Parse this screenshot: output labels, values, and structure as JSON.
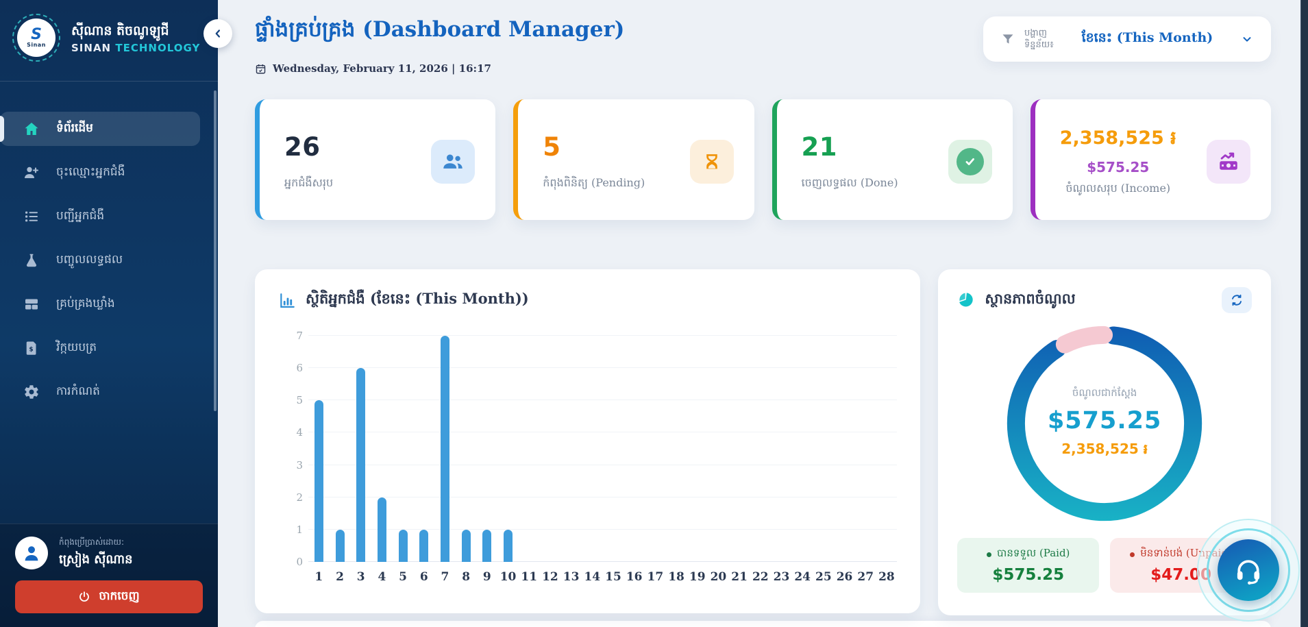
{
  "app": {
    "brand": {
      "name_khmer": "ស៊ីណាន តិចណូឡូជី",
      "name_en_1": "SINAN",
      "name_en_2": "TECHNOLOGY",
      "logo_letter": "S",
      "logo_word": "Sinan"
    },
    "colors": {
      "sidebar_top": "#0d2f58",
      "accent_blue": "#2f9ce0",
      "accent_orange": "#f59e0b",
      "accent_green": "#1fa45c",
      "accent_purple": "#9d2fc0",
      "bar_blue": "#3e9cdb",
      "donut_blue_start": "#0f5ab2",
      "donut_blue_end": "#19b4c6",
      "donut_pink": "#f5c9d2",
      "logout_red": "#cf3e2d",
      "title_blue": "#1463be"
    }
  },
  "sidebar": {
    "items": [
      {
        "label": "ទំព័រដើម",
        "icon": "home-icon",
        "active": true
      },
      {
        "label": "ចុះឈ្មោះអ្នកជំងឺ",
        "icon": "user-plus-icon",
        "active": false
      },
      {
        "label": "បញ្ជីអ្នកជំងឺ",
        "icon": "list-icon",
        "active": false
      },
      {
        "label": "បញ្ចូលលទ្ធផល",
        "icon": "flask-icon",
        "active": false
      },
      {
        "label": "គ្រប់គ្រងឃ្លាំង",
        "icon": "warehouse-icon",
        "active": false
      },
      {
        "label": "វិក្កយបត្រ",
        "icon": "invoice-icon",
        "active": false
      },
      {
        "label": "ការកំណត់",
        "icon": "settings-icon",
        "active": false
      }
    ],
    "user": {
      "caption": "កំពុងប្រើប្រាស់ដោយ:",
      "name": "ស្រៀង ស៊ីណាន"
    },
    "logout_label": "ចាកចេញ"
  },
  "header": {
    "title": "ផ្ទាំងគ្រប់គ្រង (Dashboard Manager)",
    "datetime": "Wednesday, February 11, 2026 | 16:17",
    "filter": {
      "label_line1": "បង្ហាញ",
      "label_line2": "ទិន្នន័យ៖",
      "value": "ខែនេះ (This Month)"
    }
  },
  "stats": [
    {
      "value": "26",
      "label": "អ្នកជំងឺសរុប",
      "accent": "#2f9ce0",
      "icon": "users-icon"
    },
    {
      "value": "5",
      "label": "កំពុងពិនិត្យ (Pending)",
      "accent": "#f59e0b",
      "icon": "hourglass-icon"
    },
    {
      "value": "21",
      "label": "ចេញលទ្ធផល (Done)",
      "accent": "#1fa45c",
      "icon": "check-circle-icon"
    },
    {
      "value": "2,358,525 ៛",
      "value2": "$575.25",
      "label": "ចំណូលសរុប (Income)",
      "accent": "#9d2fc0",
      "icon": "money-chart-icon"
    }
  ],
  "bar_card": {
    "title": "ស្ថិតិអ្នកជំងឺ (ខែនេះ (This Month))"
  },
  "donut_card": {
    "title": "ស្ថានភាពចំណូល",
    "center_caption": "ចំណូលជាក់ស្តែង",
    "center_usd": "$575.25",
    "center_riel": "2,358,525 ៛",
    "paid": {
      "label": "បានទទួល (Paid)",
      "value": "$575.25"
    },
    "unpaid": {
      "label": "មិនទាន់បង់ (Unpaid)",
      "value": "$47.00"
    }
  },
  "chart_data": [
    {
      "type": "bar",
      "title": "ស្ថិតិអ្នកជំងឺ (ខែនេះ (This Month))",
      "x": [
        1,
        2,
        3,
        4,
        5,
        6,
        7,
        8,
        9,
        10,
        11,
        12,
        13,
        14,
        15,
        16,
        17,
        18,
        19,
        20,
        21,
        22,
        23,
        24,
        25,
        26,
        27,
        28
      ],
      "values": [
        5,
        1,
        6,
        2,
        1,
        1,
        7,
        1,
        1,
        1,
        0,
        0,
        0,
        0,
        0,
        0,
        0,
        0,
        0,
        0,
        0,
        0,
        0,
        0,
        0,
        0,
        0,
        0
      ],
      "xlabel": "",
      "ylabel": "",
      "ylim": [
        0,
        7
      ],
      "yticks": [
        0,
        1,
        2,
        3,
        4,
        5,
        6,
        7
      ],
      "grid": true,
      "legend": false,
      "bar_color": "#3e9cdb"
    },
    {
      "type": "donut",
      "title": "ស្ថានភាពចំណូល",
      "segments": [
        {
          "label": "បានទទួល (Paid)",
          "value": 575.25,
          "color": "#0f5ab2"
        },
        {
          "label": "មិនទាន់បង់ (Unpaid)",
          "value": 47.0,
          "color": "#f5c9d2"
        }
      ],
      "center": {
        "caption": "ចំណូលជាក់ស្តែង",
        "usd": "$575.25",
        "riel": "2,358,525 ៛"
      },
      "legend_position": "bottom"
    }
  ]
}
